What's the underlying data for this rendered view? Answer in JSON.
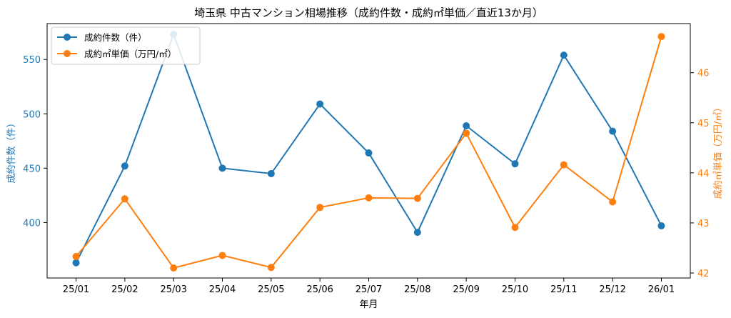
{
  "chart_data": {
    "type": "line",
    "title": "埼玉県 中古マンション相場推移（成約件数・成約㎡単価／直近13か月）",
    "xlabel": "年月",
    "ylabel_left": "成約件数（件）",
    "ylabel_right": "成約㎡単価（万円/㎡）",
    "categories": [
      "25/01",
      "25/02",
      "25/03",
      "25/04",
      "25/05",
      "25/06",
      "25/07",
      "25/08",
      "25/09",
      "25/10",
      "25/11",
      "25/12",
      "26/01"
    ],
    "series": [
      {
        "name": "成約件数（件）",
        "axis": "left",
        "color": "#1f77b4",
        "values": [
          363,
          452,
          573,
          450,
          445,
          509,
          464,
          391,
          489,
          454,
          554,
          484,
          397
        ]
      },
      {
        "name": "成約㎡単価（万円/㎡）",
        "axis": "right",
        "color": "#ff7f0e",
        "values": [
          42.33,
          43.48,
          42.1,
          42.35,
          42.11,
          43.31,
          43.5,
          43.49,
          44.79,
          42.91,
          44.16,
          43.42,
          46.72
        ]
      }
    ],
    "ylim_left": [
      349,
      583
    ],
    "yticks_left": [
      400,
      450,
      500,
      550
    ],
    "ylim_right": [
      41.9,
      46.98
    ],
    "yticks_right": [
      42,
      43,
      44,
      45,
      46
    ],
    "legend_position": "top-left",
    "grid": false
  }
}
